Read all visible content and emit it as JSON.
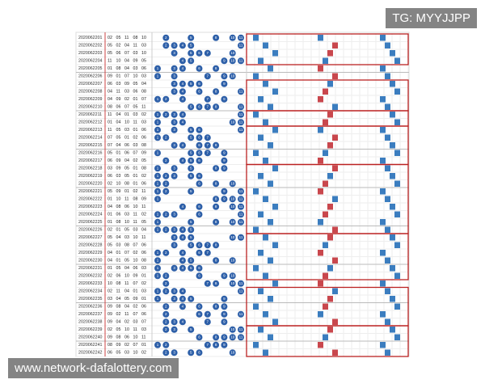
{
  "watermarks": {
    "top": "TG: MYYJJPP",
    "bottom": "www.network-dafalottery.com"
  },
  "table": {
    "ball_labels": [
      "1",
      "2",
      "3",
      "4",
      "5",
      "6",
      "7",
      "8",
      "9",
      "10",
      "11"
    ],
    "rows": [
      {
        "period": "2020062201",
        "numbers": [
          "02",
          "05",
          "11",
          "08",
          "10"
        ]
      },
      {
        "period": "2020062202",
        "numbers": [
          "05",
          "02",
          "04",
          "11",
          "03"
        ]
      },
      {
        "period": "2020062203",
        "numbers": [
          "05",
          "06",
          "07",
          "03",
          "10"
        ]
      },
      {
        "period": "2020062204",
        "numbers": [
          "11",
          "10",
          "04",
          "09",
          "05"
        ]
      },
      {
        "period": "2020062205",
        "numbers": [
          "01",
          "08",
          "04",
          "03",
          "06"
        ]
      },
      {
        "period": "2020062206",
        "numbers": [
          "09",
          "01",
          "07",
          "10",
          "03"
        ]
      },
      {
        "period": "2020062207",
        "numbers": [
          "06",
          "03",
          "09",
          "05",
          "04"
        ]
      },
      {
        "period": "2020062208",
        "numbers": [
          "04",
          "11",
          "03",
          "06",
          "08"
        ]
      },
      {
        "period": "2020062209",
        "numbers": [
          "04",
          "09",
          "02",
          "01",
          "07"
        ]
      },
      {
        "period": "2020062210",
        "numbers": [
          "08",
          "06",
          "07",
          "05",
          "11"
        ]
      },
      {
        "period": "2020062211",
        "numbers": [
          "11",
          "04",
          "01",
          "03",
          "02"
        ]
      },
      {
        "period": "2020062212",
        "numbers": [
          "01",
          "04",
          "10",
          "11",
          "03"
        ]
      },
      {
        "period": "2020062213",
        "numbers": [
          "11",
          "05",
          "03",
          "01",
          "06"
        ]
      },
      {
        "period": "2020062214",
        "numbers": [
          "07",
          "05",
          "01",
          "02",
          "06"
        ]
      },
      {
        "period": "2020062215",
        "numbers": [
          "07",
          "04",
          "06",
          "03",
          "08"
        ]
      },
      {
        "period": "2020062216",
        "numbers": [
          "05",
          "01",
          "06",
          "07",
          "09"
        ]
      },
      {
        "period": "2020062217",
        "numbers": [
          "06",
          "09",
          "04",
          "02",
          "05"
        ]
      },
      {
        "period": "2020062218",
        "numbers": [
          "03",
          "09",
          "05",
          "01",
          "08"
        ]
      },
      {
        "period": "2020062219",
        "numbers": [
          "06",
          "03",
          "05",
          "01",
          "02"
        ]
      },
      {
        "period": "2020062220",
        "numbers": [
          "02",
          "10",
          "08",
          "01",
          "06"
        ]
      },
      {
        "period": "2020062221",
        "numbers": [
          "05",
          "09",
          "01",
          "02",
          "11"
        ]
      },
      {
        "period": "2020062222",
        "numbers": [
          "01",
          "10",
          "11",
          "08",
          "09"
        ]
      },
      {
        "period": "2020062223",
        "numbers": [
          "04",
          "08",
          "06",
          "10",
          "11"
        ]
      },
      {
        "period": "2020062224",
        "numbers": [
          "01",
          "06",
          "03",
          "11",
          "02"
        ]
      },
      {
        "period": "2020062225",
        "numbers": [
          "01",
          "08",
          "10",
          "11",
          "05"
        ]
      },
      {
        "period": "2020062226",
        "numbers": [
          "02",
          "01",
          "05",
          "03",
          "04"
        ]
      },
      {
        "period": "2020062227",
        "numbers": [
          "05",
          "04",
          "03",
          "10",
          "11"
        ]
      },
      {
        "period": "2020062228",
        "numbers": [
          "05",
          "03",
          "08",
          "07",
          "06"
        ]
      },
      {
        "period": "2020062229",
        "numbers": [
          "04",
          "01",
          "07",
          "02",
          "06"
        ]
      },
      {
        "period": "2020062230",
        "numbers": [
          "04",
          "01",
          "05",
          "10",
          "08"
        ]
      },
      {
        "period": "2020062231",
        "numbers": [
          "01",
          "05",
          "04",
          "06",
          "03"
        ]
      },
      {
        "period": "2020062232",
        "numbers": [
          "02",
          "06",
          "10",
          "09",
          "01"
        ]
      },
      {
        "period": "2020062233",
        "numbers": [
          "10",
          "08",
          "11",
          "07",
          "02"
        ]
      },
      {
        "period": "2020062234",
        "numbers": [
          "02",
          "11",
          "04",
          "01",
          "03"
        ]
      },
      {
        "period": "2020062235",
        "numbers": [
          "03",
          "04",
          "05",
          "09",
          "01"
        ]
      },
      {
        "period": "2020062236",
        "numbers": [
          "09",
          "08",
          "04",
          "02",
          "06"
        ]
      },
      {
        "period": "2020062237",
        "numbers": [
          "09",
          "02",
          "11",
          "07",
          "06"
        ]
      },
      {
        "period": "2020062238",
        "numbers": [
          "09",
          "04",
          "02",
          "03",
          "07"
        ]
      },
      {
        "period": "2020062239",
        "numbers": [
          "02",
          "05",
          "10",
          "11",
          "03"
        ]
      },
      {
        "period": "2020062240",
        "numbers": [
          "09",
          "08",
          "06",
          "10",
          "11"
        ]
      },
      {
        "period": "2020062241",
        "numbers": [
          "08",
          "09",
          "02",
          "07",
          "01"
        ]
      },
      {
        "period": "2020062242",
        "numbers": [
          "06",
          "05",
          "03",
          "10",
          "02"
        ]
      }
    ]
  }
}
